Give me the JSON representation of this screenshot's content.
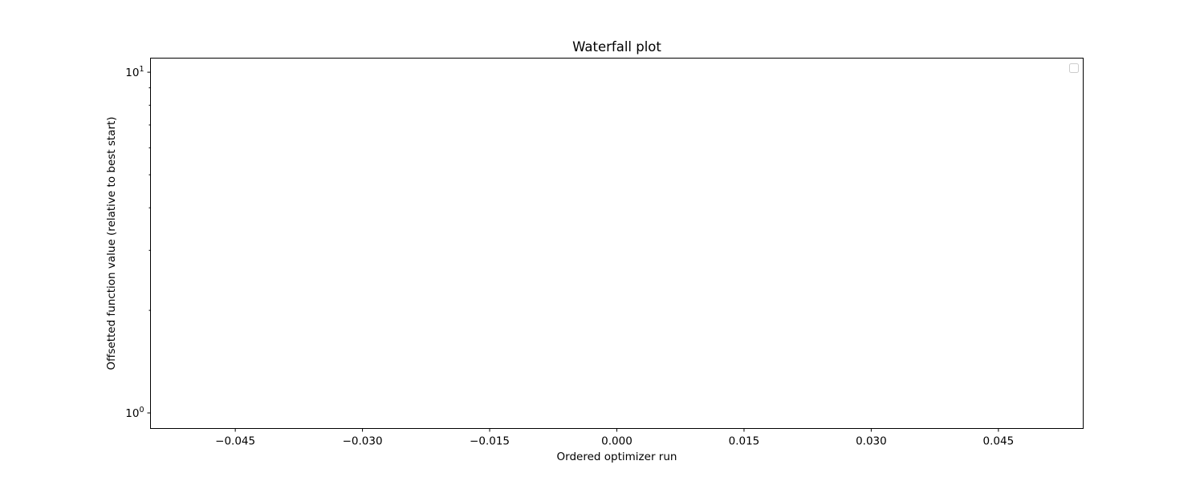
{
  "chart_data": {
    "type": "line",
    "title": "Waterfall plot",
    "xlabel": "Ordered optimizer run",
    "ylabel": "Offsetted function value (relative to best start)",
    "xlim": [
      -0.055,
      0.055
    ],
    "ylim": [
      0.9,
      11.0
    ],
    "yscale": "log",
    "xticks": [
      {
        "value": -0.045,
        "label": "−0.045"
      },
      {
        "value": -0.03,
        "label": "−0.030"
      },
      {
        "value": -0.015,
        "label": "−0.015"
      },
      {
        "value": 0.0,
        "label": "0.000"
      },
      {
        "value": 0.015,
        "label": "0.015"
      },
      {
        "value": 0.03,
        "label": "0.030"
      },
      {
        "value": 0.045,
        "label": "0.045"
      }
    ],
    "yticks": [
      {
        "value": 1,
        "base": "10",
        "exp": "0"
      },
      {
        "value": 10,
        "base": "10",
        "exp": "1"
      }
    ],
    "series": [],
    "grid": false,
    "legend": {
      "placement": "top-right",
      "entries": []
    }
  }
}
